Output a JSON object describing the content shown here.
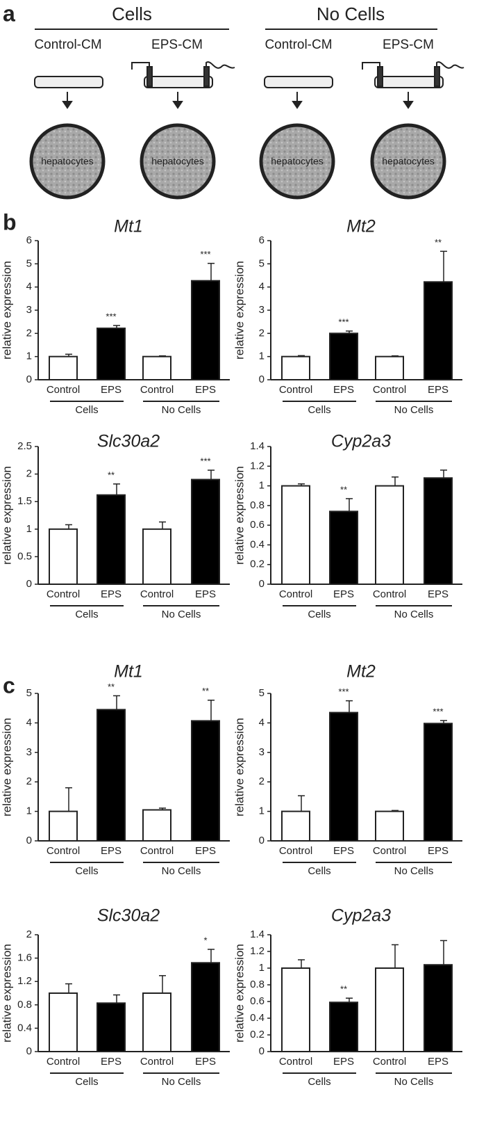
{
  "panel_labels": [
    "a",
    "b",
    "c"
  ],
  "diagram": {
    "groups": [
      {
        "title": "Cells",
        "conditions": [
          "Control-CM",
          "EPS-CM"
        ]
      },
      {
        "title": "No Cells",
        "conditions": [
          "Control-CM",
          "EPS-CM"
        ]
      }
    ],
    "cell_label": "hepatocytes"
  },
  "chart_data": [
    {
      "type": "bar",
      "title": "Mt1",
      "y_label": "relative expression",
      "categories": [
        "Control",
        "EPS",
        "Control",
        "EPS"
      ],
      "groups": [
        "Cells",
        "No Cells"
      ],
      "values": [
        1,
        2.22,
        1,
        4.27
      ],
      "errors": [
        0.1,
        0.12,
        0.03,
        0.75
      ],
      "annotations": [
        null,
        "***",
        null,
        "***"
      ],
      "colors": [
        "#ffffff",
        "#000000",
        "#ffffff",
        "#000000"
      ],
      "ylim": [
        0,
        6
      ],
      "yticks": [
        0,
        1,
        2,
        3,
        4,
        5,
        6
      ]
    },
    {
      "type": "bar",
      "title": "Mt2",
      "y_label": "relative expression",
      "categories": [
        "Control",
        "EPS",
        "Control",
        "EPS"
      ],
      "groups": [
        "Cells",
        "No Cells"
      ],
      "values": [
        1,
        2,
        1,
        4.22
      ],
      "errors": [
        0.04,
        0.1,
        0.03,
        1.32
      ],
      "annotations": [
        null,
        "***",
        null,
        "**"
      ],
      "colors": [
        "#ffffff",
        "#000000",
        "#ffffff",
        "#000000"
      ],
      "ylim": [
        0,
        6
      ],
      "yticks": [
        0,
        1,
        2,
        3,
        4,
        5,
        6
      ]
    },
    {
      "type": "bar",
      "title": "Slc30a2",
      "y_label": "relative expression",
      "categories": [
        "Control",
        "EPS",
        "Control",
        "EPS"
      ],
      "groups": [
        "Cells",
        "No Cells"
      ],
      "values": [
        1,
        1.62,
        1,
        1.9
      ],
      "errors": [
        0.08,
        0.2,
        0.13,
        0.17
      ],
      "annotations": [
        null,
        "**",
        null,
        "***"
      ],
      "colors": [
        "#ffffff",
        "#000000",
        "#ffffff",
        "#000000"
      ],
      "ylim": [
        0,
        2.5
      ],
      "yticks": [
        0,
        0.5,
        1,
        1.5,
        2,
        2.5
      ]
    },
    {
      "type": "bar",
      "title": "Cyp2a3",
      "y_label": "relative expression",
      "categories": [
        "Control",
        "EPS",
        "Control",
        "EPS"
      ],
      "groups": [
        "Cells",
        "No Cells"
      ],
      "values": [
        1,
        0.74,
        1,
        1.08
      ],
      "errors": [
        0.02,
        0.13,
        0.09,
        0.08
      ],
      "annotations": [
        null,
        "**",
        null,
        null
      ],
      "colors": [
        "#ffffff",
        "#000000",
        "#ffffff",
        "#000000"
      ],
      "ylim": [
        0,
        1.4
      ],
      "yticks": [
        0,
        0.2,
        0.4,
        0.6,
        0.8,
        1,
        1.2,
        1.4
      ]
    },
    {
      "type": "bar",
      "title": "Mt1",
      "y_label": "relative expression",
      "categories": [
        "Control",
        "EPS",
        "Control",
        "EPS"
      ],
      "groups": [
        "Cells",
        "No Cells"
      ],
      "values": [
        1,
        4.45,
        1.05,
        4.07
      ],
      "errors": [
        0.8,
        0.47,
        0.06,
        0.7
      ],
      "annotations": [
        null,
        "**",
        null,
        "**"
      ],
      "colors": [
        "#ffffff",
        "#000000",
        "#ffffff",
        "#000000"
      ],
      "ylim": [
        0,
        5
      ],
      "yticks": [
        0,
        1,
        2,
        3,
        4,
        5
      ]
    },
    {
      "type": "bar",
      "title": "Mt2",
      "y_label": "relative expression",
      "categories": [
        "Control",
        "EPS",
        "Control",
        "EPS"
      ],
      "groups": [
        "Cells",
        "No Cells"
      ],
      "values": [
        1,
        4.35,
        1,
        3.98
      ],
      "errors": [
        0.53,
        0.4,
        0.03,
        0.1
      ],
      "annotations": [
        null,
        "***",
        null,
        "***"
      ],
      "colors": [
        "#ffffff",
        "#000000",
        "#ffffff",
        "#000000"
      ],
      "ylim": [
        0,
        5
      ],
      "yticks": [
        0,
        1,
        2,
        3,
        4,
        5
      ]
    },
    {
      "type": "bar",
      "title": "Slc30a2",
      "y_label": "relative expression",
      "categories": [
        "Control",
        "EPS",
        "Control",
        "EPS"
      ],
      "groups": [
        "Cells",
        "No Cells"
      ],
      "values": [
        1,
        0.83,
        1,
        1.52
      ],
      "errors": [
        0.16,
        0.14,
        0.3,
        0.23
      ],
      "annotations": [
        null,
        null,
        null,
        "*"
      ],
      "colors": [
        "#ffffff",
        "#000000",
        "#ffffff",
        "#000000"
      ],
      "ylim": [
        0,
        2
      ],
      "yticks": [
        0,
        0.4,
        0.8,
        1.2,
        1.6,
        2
      ]
    },
    {
      "type": "bar",
      "title": "Cyp2a3",
      "y_label": "relative expression",
      "categories": [
        "Control",
        "EPS",
        "Control",
        "EPS"
      ],
      "groups": [
        "Cells",
        "No Cells"
      ],
      "values": [
        1,
        0.59,
        1,
        1.04
      ],
      "errors": [
        0.1,
        0.05,
        0.28,
        0.29
      ],
      "annotations": [
        null,
        "**",
        null,
        null
      ],
      "colors": [
        "#ffffff",
        "#000000",
        "#ffffff",
        "#000000"
      ],
      "ylim": [
        0,
        1.4
      ],
      "yticks": [
        0,
        0.2,
        0.4,
        0.6,
        0.8,
        1,
        1.2,
        1.4
      ]
    }
  ]
}
